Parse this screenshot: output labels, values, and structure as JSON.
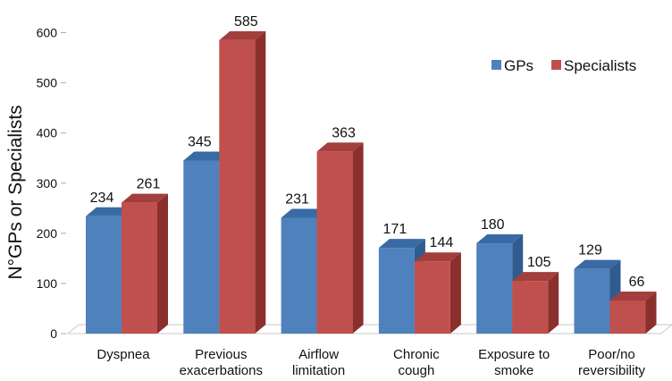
{
  "chart_data": {
    "type": "bar",
    "title": "",
    "xlabel": "",
    "ylabel": "N°GPs or Specialists",
    "ylim": [
      0,
      600
    ],
    "yticks": [
      0,
      100,
      200,
      300,
      400,
      500,
      600
    ],
    "categories": [
      [
        "Dyspnea"
      ],
      [
        "Previous",
        "exacerbations"
      ],
      [
        "Airflow",
        "limitation"
      ],
      [
        "Chronic",
        "cough"
      ],
      [
        "Exposure to",
        "smoke"
      ],
      [
        "Poor/no",
        "reversibility"
      ]
    ],
    "series": [
      {
        "name": "GPs",
        "values": [
          234,
          345,
          231,
          171,
          180,
          129
        ],
        "color": "#4f81bd",
        "top_color": "#3a6aa3",
        "side_color": "#2f5b8f"
      },
      {
        "name": "Specialists",
        "values": [
          261,
          585,
          363,
          144,
          105,
          66
        ],
        "color": "#c0504d",
        "top_color": "#a23f3c",
        "side_color": "#8b2f2d"
      }
    ],
    "legend": "top-right",
    "grid": false,
    "style": "3d-bar"
  }
}
